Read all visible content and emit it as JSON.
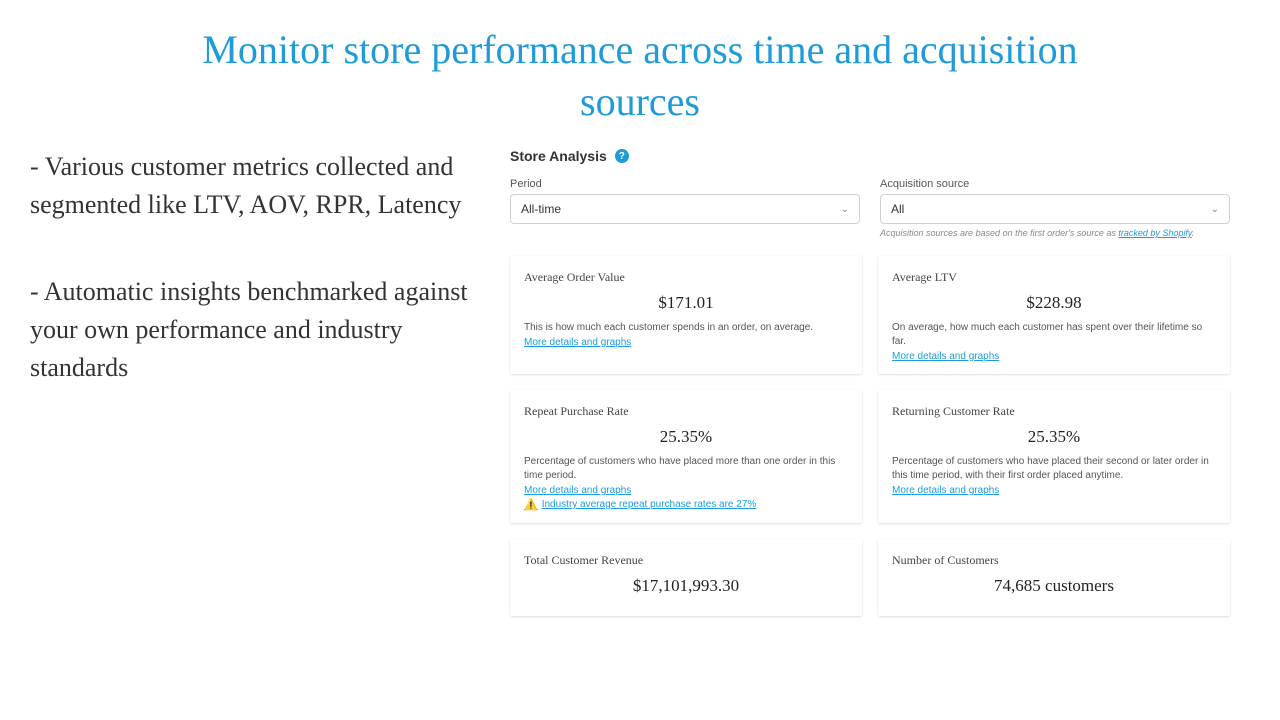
{
  "headline": "Monitor store performance across time and acquisition sources",
  "bullets": {
    "b1": "- Various customer metrics collected and segmented like LTV, AOV, RPR, Latency",
    "b2": "- Automatic insights benchmarked against your own performance and industry standards"
  },
  "panel": {
    "title": "Store Analysis",
    "filters": {
      "period_label": "Period",
      "period_value": "All-time",
      "source_label": "Acquisition source",
      "source_value": "All",
      "hint_prefix": "Acquisition sources are based on the first order's source as ",
      "hint_link": "tracked by Shopify"
    },
    "link_text": "More details and graphs",
    "cards": {
      "aov": {
        "title": "Average Order Value",
        "value": "$171.01",
        "desc": "This is how much each customer spends in an order, on average."
      },
      "ltv": {
        "title": "Average LTV",
        "value": "$228.98",
        "desc": "On average, how much each customer has spent over their lifetime so far."
      },
      "rpr": {
        "title": "Repeat Purchase Rate",
        "value": "25.35%",
        "desc": "Percentage of customers who have placed more than one order in this time period.",
        "warn": "Industry average repeat purchase rates are 27%"
      },
      "rcr": {
        "title": "Returning Customer Rate",
        "value": "25.35%",
        "desc": "Percentage of customers who have placed their second or later order in this time period, with their first order placed anytime."
      },
      "tcr": {
        "title": "Total Customer Revenue",
        "value": "$17,101,993.30"
      },
      "noc": {
        "title": "Number of Customers",
        "value": "74,685 customers"
      }
    }
  },
  "colors": {
    "accent": "#1e9bd8",
    "text": "#333333",
    "warn": "#f5a623"
  }
}
